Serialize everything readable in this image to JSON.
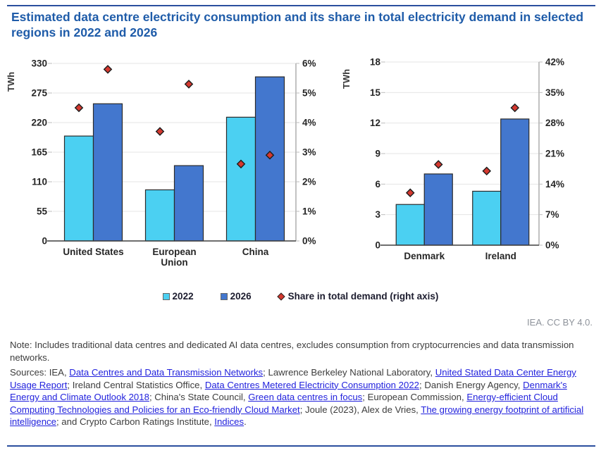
{
  "page": {
    "title": "Estimated data centre electricity consumption and its share in total electricity demand in selected regions in 2022 and 2026",
    "attribution": "IEA. CC BY 4.0.",
    "note": "Note: Includes traditional data centres and dedicated AI data centres, excludes consumption from cryptocurrencies and data transmission networks."
  },
  "colors": {
    "bar_2022": "#4BD0F2",
    "bar_2026": "#4377CE",
    "share_marker": "#D5382F",
    "title_blue": "#1F5CA9",
    "rule_blue": "#2B4F9E",
    "link_blue": "#2222DD"
  },
  "legend": {
    "year1": {
      "label": "2022",
      "color": "#4BD0F2"
    },
    "year2": {
      "label": "2026",
      "color": "#4377CE"
    },
    "share": {
      "label": "Share in total demand (right axis)",
      "color": "#D5382F"
    }
  },
  "chart_data": [
    {
      "type": "bar",
      "subtype": "grouped bars with diamond scatter overlay on secondary axis",
      "title": "",
      "categories": [
        "United States",
        "European Union",
        "China"
      ],
      "category_lines": [
        [
          "United States"
        ],
        [
          "European",
          "Union"
        ],
        [
          "China"
        ]
      ],
      "left_axis": {
        "label": "TWh",
        "min": 0,
        "max": 330,
        "ticks": [
          0,
          55,
          110,
          165,
          220,
          275,
          330
        ]
      },
      "right_axis": {
        "min": 0,
        "max": 6,
        "ticks": [
          "0%",
          "1%",
          "2%",
          "3%",
          "4%",
          "5%",
          "6%"
        ]
      },
      "grid": true,
      "legend_position": "bottom",
      "series": [
        {
          "name": "2022",
          "type": "bar",
          "axis": "left",
          "values": [
            195,
            95,
            230
          ]
        },
        {
          "name": "2026",
          "type": "bar",
          "axis": "left",
          "values": [
            255,
            140,
            305
          ]
        },
        {
          "name": "Share in total demand (right axis)",
          "type": "scatter",
          "marker": "diamond",
          "axis": "right",
          "by_year": {
            "2022": [
              4.5,
              3.7,
              2.6
            ],
            "2026": [
              5.8,
              5.3,
              2.9
            ]
          }
        }
      ]
    },
    {
      "type": "bar",
      "subtype": "grouped bars with diamond scatter overlay on secondary axis",
      "title": "",
      "categories": [
        "Denmark",
        "Ireland"
      ],
      "category_lines": [
        [
          "Denmark"
        ],
        [
          "Ireland"
        ]
      ],
      "left_axis": {
        "label": "TWh",
        "min": 0,
        "max": 18,
        "ticks": [
          0,
          3,
          6,
          9,
          12,
          15,
          18
        ]
      },
      "right_axis": {
        "min": 0,
        "max": 42,
        "ticks": [
          "0%",
          "7%",
          "14%",
          "21%",
          "28%",
          "35%",
          "42%"
        ]
      },
      "grid": true,
      "legend_position": "bottom",
      "series": [
        {
          "name": "2022",
          "type": "bar",
          "axis": "left",
          "values": [
            4.0,
            5.3
          ]
        },
        {
          "name": "2026",
          "type": "bar",
          "axis": "left",
          "values": [
            7.0,
            12.4
          ]
        },
        {
          "name": "Share in total demand (right axis)",
          "type": "scatter",
          "marker": "diamond",
          "axis": "right",
          "by_year": {
            "2022": [
              12,
              17
            ],
            "2026": [
              18.5,
              31.5
            ]
          }
        }
      ]
    }
  ],
  "sources": {
    "segments": [
      {
        "text": "Sources: IEA, ",
        "link": false
      },
      {
        "text": "Data Centres and Data Transmission Networks",
        "link": true
      },
      {
        "text": "; Lawrence Berkeley National Laboratory, ",
        "link": false
      },
      {
        "text": "United Stated Data Center Energy Usage Report",
        "link": true
      },
      {
        "text": "; Ireland Central Statistics Office, ",
        "link": false
      },
      {
        "text": "Data Centres Metered Electricity Consumption 2022",
        "link": true
      },
      {
        "text": "; Danish Energy Agency, ",
        "link": false
      },
      {
        "text": "Denmark's Energy and Climate Outlook 2018",
        "link": true
      },
      {
        "text": "; China's State Council, ",
        "link": false
      },
      {
        "text": "Green data centres in focus",
        "link": true
      },
      {
        "text": "; European Commission, ",
        "link": false
      },
      {
        "text": "Energy-efficient Cloud Computing Technologies and Policies for an Eco-friendly Cloud Market",
        "link": true
      },
      {
        "text": "; Joule (2023), Alex de Vries, ",
        "link": false
      },
      {
        "text": "The growing energy footprint of artificial intelligence",
        "link": true
      },
      {
        "text": "; and Crypto Carbon Ratings Institute, ",
        "link": false
      },
      {
        "text": "Indices",
        "link": true
      },
      {
        "text": ".",
        "link": false
      }
    ]
  }
}
